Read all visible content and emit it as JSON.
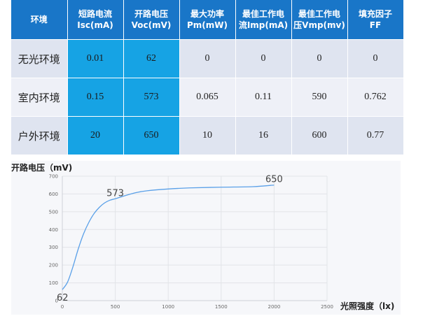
{
  "table": {
    "headers": [
      "环境",
      "短路电流\nIsc(mA)",
      "开路电压\nVoc(mV)",
      "最大功率\nPm(mW)",
      "最佳工作电\n流Imp(mA)",
      "最佳工作电\n压Vmp(mv)",
      "填充因子\nFF"
    ],
    "rows": [
      [
        "无光环境",
        "0.01",
        "62",
        "0",
        "0",
        "0",
        "0"
      ],
      [
        "室内环境",
        "0.15",
        "573",
        "0.065",
        "0.11",
        "590",
        "0.762"
      ],
      [
        "户外环境",
        "20",
        "650",
        "10",
        "16",
        "600",
        "0.77"
      ]
    ],
    "colors": {
      "header": "#1976c8",
      "highlight": "#16a3e4",
      "row_dark": "#dfe4f0",
      "row_light": "#eef0f7"
    }
  },
  "chart_data": {
    "type": "line",
    "ylabel": "开路电压（mV)",
    "xlabel": "光照强度（lx)",
    "xlim": [
      0,
      2500
    ],
    "ylim": [
      0,
      700
    ],
    "xticks": [
      "0",
      "500",
      "1000",
      "1500",
      "2000",
      "2500"
    ],
    "yticks": [
      "0",
      "100",
      "200",
      "300",
      "400",
      "500",
      "600",
      "700"
    ],
    "grid": true,
    "series": [
      {
        "color": "#5aa0e8",
        "points": [
          [
            0,
            62
          ],
          [
            50,
            105
          ],
          [
            100,
            190
          ],
          [
            150,
            290
          ],
          [
            200,
            375
          ],
          [
            250,
            440
          ],
          [
            300,
            490
          ],
          [
            350,
            525
          ],
          [
            400,
            550
          ],
          [
            450,
            565
          ],
          [
            500,
            573
          ],
          [
            600,
            592
          ],
          [
            700,
            608
          ],
          [
            800,
            618
          ],
          [
            1000,
            628
          ],
          [
            1200,
            634
          ],
          [
            1500,
            638
          ],
          [
            1800,
            641
          ],
          [
            2000,
            650
          ]
        ]
      }
    ],
    "annotations": [
      {
        "x": 0,
        "y": 62,
        "text": "62"
      },
      {
        "x": 500,
        "y": 573,
        "text": "573"
      },
      {
        "x": 2000,
        "y": 650,
        "text": "650"
      }
    ]
  }
}
